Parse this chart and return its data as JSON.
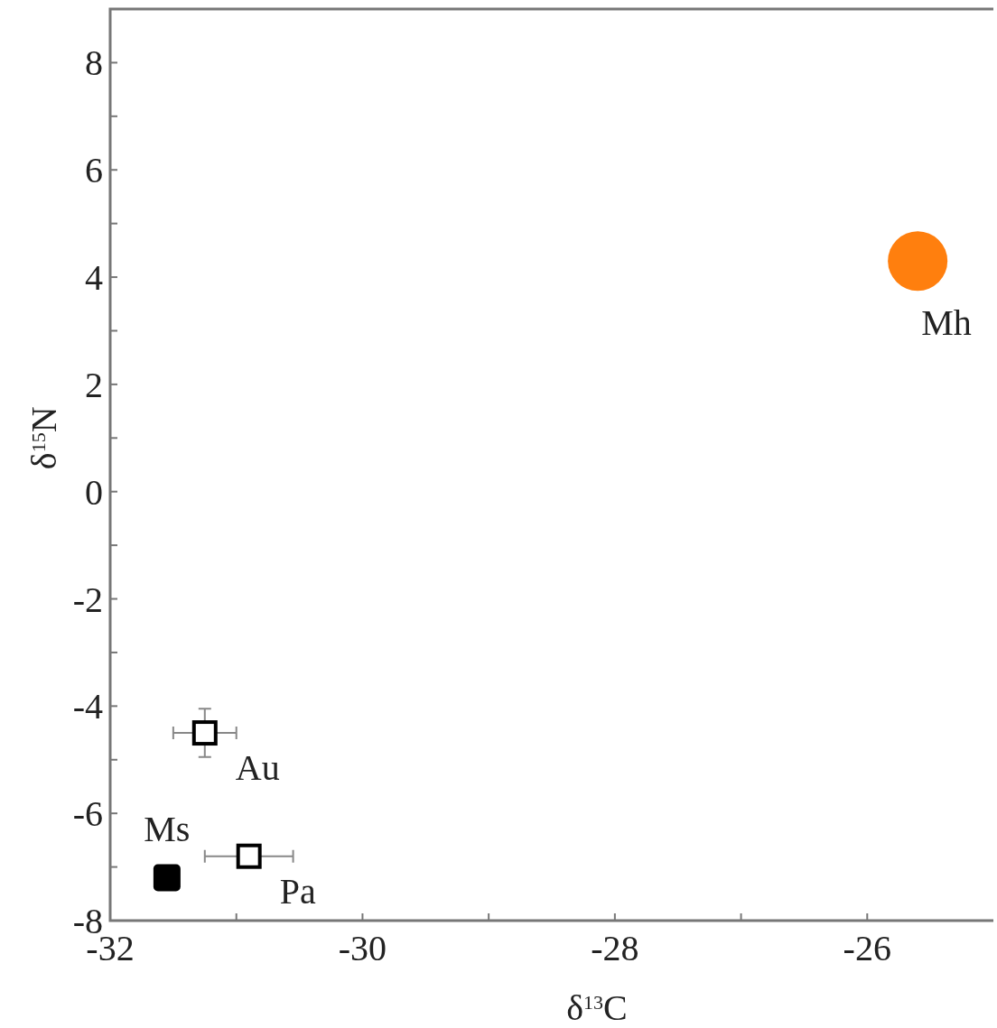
{
  "chart_data": {
    "type": "scatter",
    "xlabel": "δ$^{13}$C",
    "ylabel": "δ$^{15}$N",
    "xlim": [
      -32,
      -25
    ],
    "ylim": [
      -8,
      9
    ],
    "xticks": [
      -32,
      {
        "value": -31,
        "label": null
      },
      -30,
      {
        "value": -29,
        "label": null
      },
      -28,
      {
        "value": -27,
        "label": null
      },
      -26
    ],
    "yticks": [
      -8,
      {
        "value": -7,
        "label": null
      },
      -6,
      {
        "value": -5,
        "label": null
      },
      -4,
      {
        "value": -3,
        "label": null
      },
      -2,
      {
        "value": -1,
        "label": null
      },
      0,
      {
        "value": 1,
        "label": null
      },
      2,
      {
        "value": 3,
        "label": null
      },
      4,
      {
        "value": 5,
        "label": null
      },
      6,
      {
        "value": 7,
        "label": null
      },
      8
    ],
    "grid": false,
    "series": [
      {
        "name": "Mh",
        "color": "#ff7f0e",
        "marker": "circle",
        "x": [
          -25.6
        ],
        "values": [
          4.3
        ]
      },
      {
        "name": "Au",
        "color": "#000000",
        "marker": "square",
        "x": [
          -31.25
        ],
        "values": [
          -4.5
        ],
        "errors": [
          0.45
        ],
        "xerrors": [
          0.25
        ]
      },
      {
        "name": "Pa",
        "color": "#000000",
        "marker": "square",
        "x": [
          -30.9
        ],
        "values": [
          -6.8
        ],
        "xerrors": [
          0.35
        ]
      },
      {
        "name": "Ms",
        "color": "#000000",
        "marker": "square",
        "x": [
          -31.55
        ],
        "values": [
          -7.2
        ]
      }
    ]
  }
}
